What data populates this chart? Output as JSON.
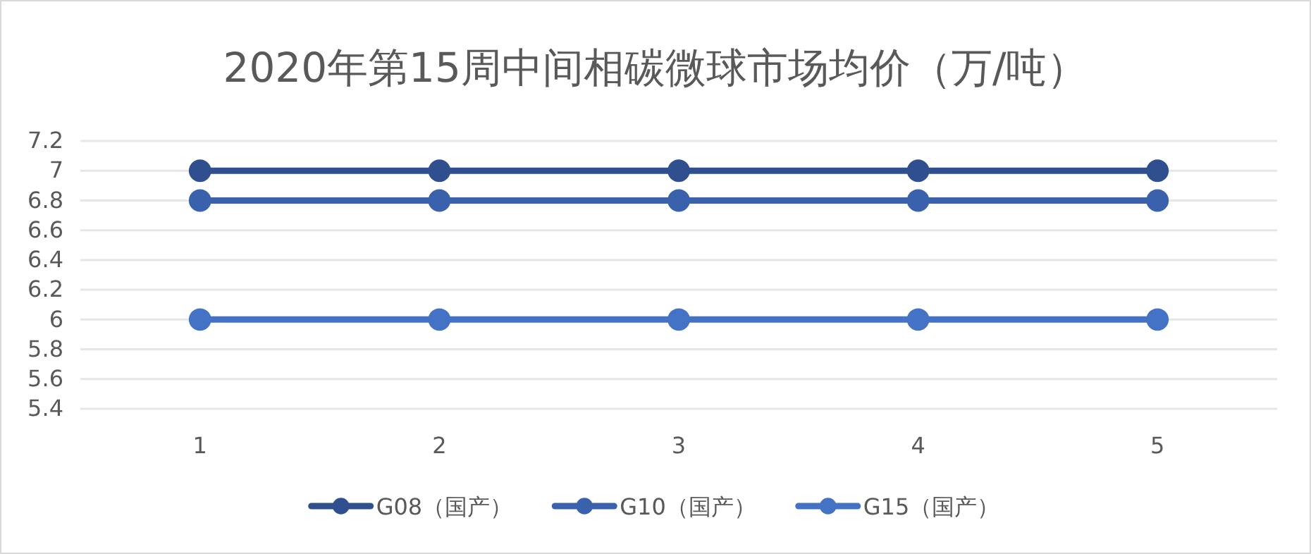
{
  "chart_data": {
    "type": "line",
    "title": "2020年第15周中间相碳微球市场均价（万/吨）",
    "categories": [
      "1",
      "2",
      "3",
      "4",
      "5"
    ],
    "series": [
      {
        "name": "G08（国产）",
        "color": "#2f4f8f",
        "values": [
          7,
          7,
          7,
          7,
          7
        ]
      },
      {
        "name": "G10（国产）",
        "color": "#3a62ac",
        "values": [
          6.8,
          6.8,
          6.8,
          6.8,
          6.8
        ]
      },
      {
        "name": "G15（国产）",
        "color": "#4472c4",
        "values": [
          6,
          6,
          6,
          6,
          6
        ]
      }
    ],
    "ylim": [
      5.4,
      7.2
    ],
    "yticks": [
      5.4,
      5.6,
      5.8,
      6,
      6.2,
      6.4,
      6.6,
      6.8,
      7,
      7.2
    ],
    "grid": "y",
    "legend": "bottom",
    "marker": "circle",
    "line_style": "solid"
  }
}
